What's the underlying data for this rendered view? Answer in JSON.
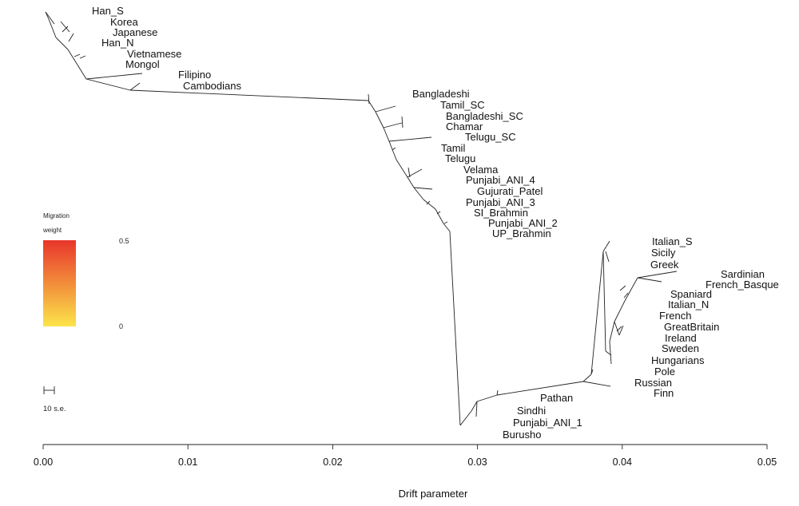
{
  "chart_data": {
    "type": "tree",
    "xlabel": "Drift parameter",
    "xlim": [
      0,
      0.05
    ],
    "xticks": [
      0.0,
      0.01,
      0.02,
      0.03,
      0.04,
      0.05
    ],
    "xtick_labels": [
      "0.00",
      "0.01",
      "0.02",
      "0.03",
      "0.04",
      "0.05"
    ],
    "legend": {
      "title_line1": "Migration",
      "title_line2": "weight",
      "max_label": "0.5",
      "min_label": "0",
      "color_top": "#e8352b",
      "color_bottom": "#fce44a"
    },
    "scale_bar": {
      "label": "10 s.e."
    },
    "populations": [
      "Han_S",
      "Korea",
      "Japanese",
      "Han_N",
      "Vietnamese",
      "Mongol",
      "Filipino",
      "Cambodians",
      "Bangladeshi",
      "Tamil_SC",
      "Bangladeshi_SC",
      "Chamar",
      "Telugu_SC",
      "Tamil",
      "Telugu",
      "Velama",
      "Punjabi_ANI_4",
      "Gujurati_Patel",
      "Punjabi_ANI_3",
      "SI_Brahmin",
      "Punjabi_ANI_2",
      "UP_Brahmin",
      "Italian_S",
      "Sicily",
      "Greek",
      "Sardinian",
      "French_Basque",
      "Spaniard",
      "Italian_N",
      "French",
      "GreatBritain",
      "Ireland",
      "Sweden",
      "Hungarians",
      "Pole",
      "Russian",
      "Finn",
      "Pathan",
      "Sindhi",
      "Punjabi_ANI_1",
      "Burusho"
    ]
  }
}
